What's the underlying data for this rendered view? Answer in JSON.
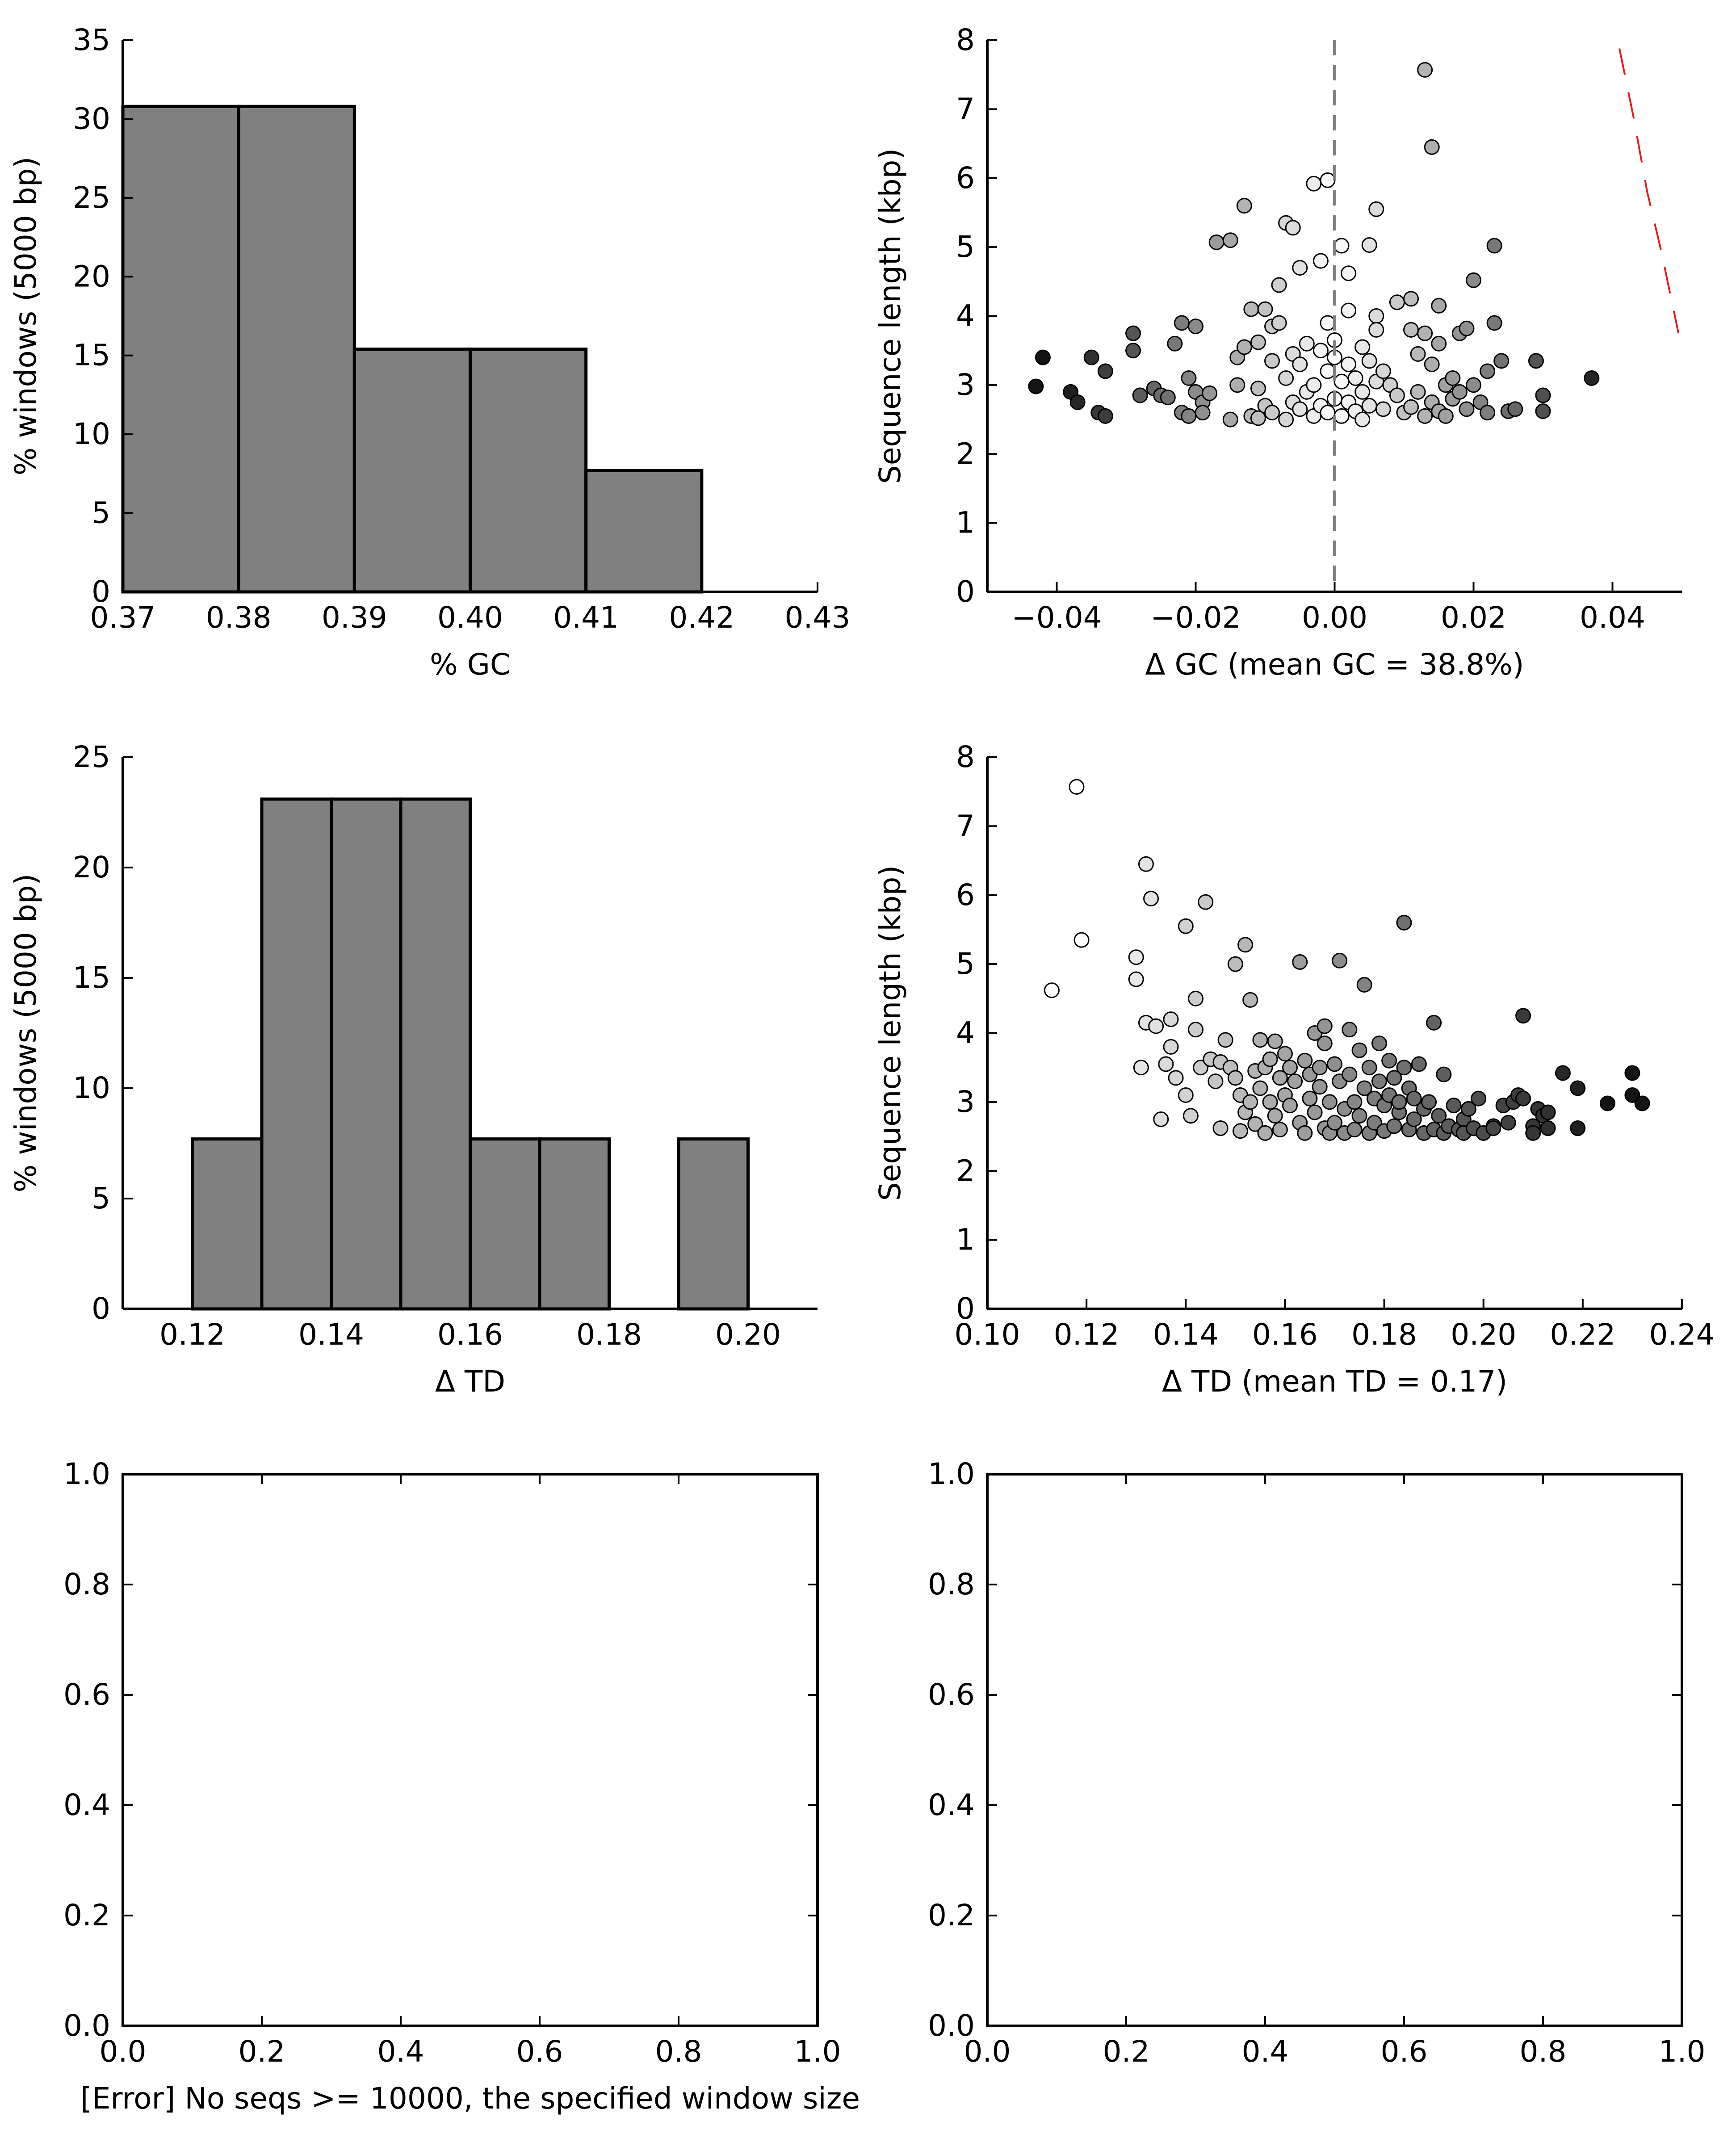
{
  "figure": {
    "background": "#ffffff",
    "bar_fill": "#808080",
    "bar_stroke": "#000000"
  },
  "chart_data": [
    {
      "id": "gc-hist",
      "type": "bar",
      "title": "",
      "xlabel": "% GC",
      "ylabel": "% windows (5000 bp)",
      "xlim": [
        0.37,
        0.43
      ],
      "ylim": [
        0,
        35
      ],
      "xticks": [
        "0.37",
        "0.38",
        "0.39",
        "0.40",
        "0.41",
        "0.42",
        "0.43"
      ],
      "yticks": [
        "0",
        "5",
        "10",
        "15",
        "20",
        "25",
        "30",
        "35"
      ],
      "bins": [
        {
          "x0": 0.37,
          "x1": 0.38,
          "value": 30.8
        },
        {
          "x0": 0.38,
          "x1": 0.39,
          "value": 30.8
        },
        {
          "x0": 0.39,
          "x1": 0.4,
          "value": 15.4
        },
        {
          "x0": 0.4,
          "x1": 0.41,
          "value": 15.4
        },
        {
          "x0": 0.41,
          "x1": 0.42,
          "value": 7.7
        }
      ]
    },
    {
      "id": "gc-scatter",
      "type": "scatter",
      "title": "",
      "xlabel": "Δ GC (mean GC = 38.8%)",
      "ylabel": "Sequence length (kbp)",
      "xlim": [
        -0.05,
        0.05
      ],
      "ylim": [
        0,
        8
      ],
      "xticks": [
        "−0.04",
        "−0.02",
        "0.00",
        "0.02",
        "0.04"
      ],
      "yticks": [
        "0",
        "1",
        "2",
        "3",
        "4",
        "5",
        "6",
        "7",
        "8"
      ],
      "vline": {
        "x": 0.0,
        "color": "#808080",
        "style": "dashed"
      },
      "curve": {
        "color": "#e41a1c",
        "style": "dashed",
        "points": [
          [
            0.041,
            7.88
          ],
          [
            0.043,
            6.9
          ],
          [
            0.045,
            5.8
          ],
          [
            0.047,
            4.95
          ],
          [
            0.0495,
            3.75
          ]
        ]
      },
      "shading": "grey level increases with |Δ GC|",
      "points": [
        [
          -0.043,
          2.98
        ],
        [
          -0.042,
          3.4
        ],
        [
          -0.038,
          2.9
        ],
        [
          -0.037,
          2.75
        ],
        [
          -0.035,
          3.4
        ],
        [
          -0.034,
          2.6
        ],
        [
          -0.033,
          3.2
        ],
        [
          -0.033,
          2.55
        ],
        [
          -0.029,
          3.75
        ],
        [
          -0.029,
          3.5
        ],
        [
          -0.028,
          2.85
        ],
        [
          -0.026,
          2.95
        ],
        [
          -0.025,
          2.85
        ],
        [
          -0.024,
          2.82
        ],
        [
          -0.023,
          3.6
        ],
        [
          -0.022,
          3.9
        ],
        [
          -0.022,
          2.6
        ],
        [
          -0.021,
          2.55
        ],
        [
          -0.021,
          3.1
        ],
        [
          -0.02,
          3.85
        ],
        [
          -0.02,
          2.9
        ],
        [
          -0.019,
          2.75
        ],
        [
          -0.019,
          2.6
        ],
        [
          -0.018,
          2.88
        ],
        [
          -0.017,
          5.07
        ],
        [
          -0.015,
          5.1
        ],
        [
          -0.015,
          2.5
        ],
        [
          -0.014,
          3.4
        ],
        [
          -0.014,
          3.0
        ],
        [
          -0.013,
          5.6
        ],
        [
          -0.013,
          3.55
        ],
        [
          -0.012,
          4.1
        ],
        [
          -0.012,
          2.55
        ],
        [
          -0.011,
          2.95
        ],
        [
          -0.011,
          3.62
        ],
        [
          -0.011,
          2.52
        ],
        [
          -0.01,
          4.1
        ],
        [
          -0.01,
          2.7
        ],
        [
          -0.009,
          3.85
        ],
        [
          -0.009,
          3.35
        ],
        [
          -0.009,
          2.6
        ],
        [
          -0.008,
          3.9
        ],
        [
          -0.008,
          4.45
        ],
        [
          -0.007,
          5.35
        ],
        [
          -0.007,
          3.1
        ],
        [
          -0.007,
          2.5
        ],
        [
          -0.006,
          5.28
        ],
        [
          -0.006,
          3.45
        ],
        [
          -0.006,
          2.75
        ],
        [
          -0.005,
          4.7
        ],
        [
          -0.005,
          3.3
        ],
        [
          -0.005,
          2.65
        ],
        [
          -0.004,
          3.6
        ],
        [
          -0.004,
          2.9
        ],
        [
          -0.003,
          5.92
        ],
        [
          -0.003,
          3.0
        ],
        [
          -0.003,
          2.55
        ],
        [
          -0.002,
          4.8
        ],
        [
          -0.002,
          3.5
        ],
        [
          -0.002,
          2.7
        ],
        [
          -0.001,
          5.97
        ],
        [
          -0.001,
          3.9
        ],
        [
          -0.001,
          3.2
        ],
        [
          -0.001,
          2.6
        ],
        [
          0.0,
          3.4
        ],
        [
          0.0,
          2.8
        ],
        [
          0.0,
          3.65
        ],
        [
          0.001,
          5.02
        ],
        [
          0.001,
          3.05
        ],
        [
          0.001,
          2.55
        ],
        [
          0.002,
          4.62
        ],
        [
          0.002,
          3.3
        ],
        [
          0.002,
          2.75
        ],
        [
          0.002,
          4.08
        ],
        [
          0.003,
          3.1
        ],
        [
          0.003,
          2.62
        ],
        [
          0.004,
          3.55
        ],
        [
          0.004,
          2.9
        ],
        [
          0.004,
          2.5
        ],
        [
          0.005,
          5.03
        ],
        [
          0.005,
          3.35
        ],
        [
          0.005,
          2.7
        ],
        [
          0.006,
          5.55
        ],
        [
          0.006,
          4.0
        ],
        [
          0.006,
          3.8
        ],
        [
          0.006,
          3.05
        ],
        [
          0.007,
          3.2
        ],
        [
          0.007,
          2.65
        ],
        [
          0.008,
          3.0
        ],
        [
          0.009,
          2.85
        ],
        [
          0.009,
          4.2
        ],
        [
          0.01,
          2.6
        ],
        [
          0.011,
          3.8
        ],
        [
          0.011,
          4.25
        ],
        [
          0.011,
          2.68
        ],
        [
          0.012,
          3.45
        ],
        [
          0.012,
          2.9
        ],
        [
          0.013,
          7.57
        ],
        [
          0.013,
          3.75
        ],
        [
          0.013,
          2.55
        ],
        [
          0.014,
          6.45
        ],
        [
          0.014,
          3.3
        ],
        [
          0.014,
          2.75
        ],
        [
          0.015,
          4.15
        ],
        [
          0.015,
          3.6
        ],
        [
          0.015,
          2.62
        ],
        [
          0.016,
          3.0
        ],
        [
          0.016,
          2.55
        ],
        [
          0.017,
          3.1
        ],
        [
          0.017,
          2.8
        ],
        [
          0.018,
          3.75
        ],
        [
          0.018,
          2.9
        ],
        [
          0.019,
          3.82
        ],
        [
          0.019,
          2.65
        ],
        [
          0.02,
          4.52
        ],
        [
          0.02,
          3.0
        ],
        [
          0.021,
          2.75
        ],
        [
          0.022,
          2.6
        ],
        [
          0.022,
          3.2
        ],
        [
          0.023,
          5.02
        ],
        [
          0.023,
          3.9
        ],
        [
          0.024,
          3.35
        ],
        [
          0.025,
          2.62
        ],
        [
          0.026,
          2.65
        ],
        [
          0.029,
          3.35
        ],
        [
          0.03,
          2.85
        ],
        [
          0.03,
          2.62
        ],
        [
          0.037,
          3.1
        ]
      ]
    },
    {
      "id": "td-hist",
      "type": "bar",
      "title": "",
      "xlabel": "Δ TD",
      "ylabel": "% windows (5000 bp)",
      "xlim": [
        0.11,
        0.21
      ],
      "ylim": [
        0,
        25
      ],
      "xticks": [
        "0.12",
        "0.14",
        "0.16",
        "0.18",
        "0.20"
      ],
      "yticks": [
        "0",
        "5",
        "10",
        "15",
        "20",
        "25"
      ],
      "bins": [
        {
          "x0": 0.12,
          "x1": 0.13,
          "value": 7.7
        },
        {
          "x0": 0.13,
          "x1": 0.14,
          "value": 23.1
        },
        {
          "x0": 0.14,
          "x1": 0.15,
          "value": 23.1
        },
        {
          "x0": 0.15,
          "x1": 0.16,
          "value": 23.1
        },
        {
          "x0": 0.16,
          "x1": 0.17,
          "value": 7.7
        },
        {
          "x0": 0.17,
          "x1": 0.18,
          "value": 7.7
        },
        {
          "x0": 0.19,
          "x1": 0.2,
          "value": 7.7
        }
      ]
    },
    {
      "id": "td-scatter",
      "type": "scatter",
      "title": "",
      "xlabel": "Δ TD (mean TD = 0.17)",
      "ylabel": "Sequence length (kbp)",
      "xlim": [
        0.1,
        0.24
      ],
      "ylim": [
        0,
        8
      ],
      "xticks": [
        "0.10",
        "0.12",
        "0.14",
        "0.16",
        "0.18",
        "0.20",
        "0.22",
        "0.24"
      ],
      "yticks": [
        "0",
        "1",
        "2",
        "3",
        "4",
        "5",
        "6",
        "7",
        "8"
      ],
      "shading": "grey level increases with Δ TD",
      "points": [
        [
          0.113,
          4.62
        ],
        [
          0.118,
          7.57
        ],
        [
          0.119,
          5.35
        ],
        [
          0.13,
          5.1
        ],
        [
          0.13,
          4.78
        ],
        [
          0.131,
          3.5
        ],
        [
          0.132,
          6.45
        ],
        [
          0.132,
          4.15
        ],
        [
          0.133,
          5.95
        ],
        [
          0.134,
          4.1
        ],
        [
          0.135,
          2.75
        ],
        [
          0.136,
          3.55
        ],
        [
          0.137,
          4.2
        ],
        [
          0.137,
          3.8
        ],
        [
          0.138,
          3.35
        ],
        [
          0.14,
          5.55
        ],
        [
          0.14,
          3.1
        ],
        [
          0.141,
          2.8
        ],
        [
          0.142,
          4.5
        ],
        [
          0.142,
          4.05
        ],
        [
          0.143,
          3.5
        ],
        [
          0.144,
          5.9
        ],
        [
          0.145,
          3.62
        ],
        [
          0.146,
          3.3
        ],
        [
          0.147,
          3.58
        ],
        [
          0.147,
          2.62
        ],
        [
          0.148,
          3.9
        ],
        [
          0.149,
          3.5
        ],
        [
          0.15,
          5.0
        ],
        [
          0.15,
          3.35
        ],
        [
          0.151,
          3.1
        ],
        [
          0.151,
          2.58
        ],
        [
          0.152,
          5.28
        ],
        [
          0.152,
          2.85
        ],
        [
          0.153,
          4.48
        ],
        [
          0.153,
          3.0
        ],
        [
          0.154,
          3.45
        ],
        [
          0.154,
          2.68
        ],
        [
          0.155,
          3.9
        ],
        [
          0.155,
          3.2
        ],
        [
          0.156,
          2.55
        ],
        [
          0.156,
          3.5
        ],
        [
          0.157,
          3.62
        ],
        [
          0.157,
          3.0
        ],
        [
          0.158,
          2.8
        ],
        [
          0.158,
          3.88
        ],
        [
          0.159,
          3.35
        ],
        [
          0.159,
          2.6
        ],
        [
          0.16,
          3.1
        ],
        [
          0.16,
          3.7
        ],
        [
          0.161,
          2.95
        ],
        [
          0.161,
          3.5
        ],
        [
          0.162,
          3.3
        ],
        [
          0.163,
          2.7
        ],
        [
          0.163,
          5.03
        ],
        [
          0.164,
          3.6
        ],
        [
          0.164,
          2.55
        ],
        [
          0.165,
          3.4
        ],
        [
          0.165,
          3.05
        ],
        [
          0.166,
          4.0
        ],
        [
          0.166,
          2.85
        ],
        [
          0.167,
          3.5
        ],
        [
          0.167,
          3.22
        ],
        [
          0.168,
          4.1
        ],
        [
          0.168,
          2.62
        ],
        [
          0.168,
          3.85
        ],
        [
          0.169,
          2.55
        ],
        [
          0.169,
          3.0
        ],
        [
          0.17,
          3.55
        ],
        [
          0.17,
          2.7
        ],
        [
          0.171,
          5.05
        ],
        [
          0.171,
          3.3
        ],
        [
          0.172,
          2.9
        ],
        [
          0.172,
          2.55
        ],
        [
          0.173,
          4.05
        ],
        [
          0.173,
          3.4
        ],
        [
          0.174,
          3.0
        ],
        [
          0.174,
          2.6
        ],
        [
          0.175,
          3.75
        ],
        [
          0.175,
          2.8
        ],
        [
          0.176,
          3.2
        ],
        [
          0.176,
          4.7
        ],
        [
          0.177,
          2.55
        ],
        [
          0.177,
          3.5
        ],
        [
          0.178,
          3.05
        ],
        [
          0.178,
          2.7
        ],
        [
          0.179,
          3.85
        ],
        [
          0.179,
          3.3
        ],
        [
          0.18,
          2.58
        ],
        [
          0.18,
          2.95
        ],
        [
          0.181,
          3.6
        ],
        [
          0.181,
          3.1
        ],
        [
          0.182,
          2.65
        ],
        [
          0.182,
          3.35
        ],
        [
          0.183,
          2.85
        ],
        [
          0.183,
          3.0
        ],
        [
          0.184,
          5.6
        ],
        [
          0.184,
          3.5
        ],
        [
          0.185,
          2.6
        ],
        [
          0.185,
          3.2
        ],
        [
          0.186,
          2.75
        ],
        [
          0.186,
          3.05
        ],
        [
          0.187,
          3.55
        ],
        [
          0.188,
          2.55
        ],
        [
          0.188,
          2.9
        ],
        [
          0.189,
          3.0
        ],
        [
          0.19,
          4.15
        ],
        [
          0.19,
          2.6
        ],
        [
          0.191,
          2.8
        ],
        [
          0.192,
          3.4
        ],
        [
          0.192,
          2.55
        ],
        [
          0.193,
          2.65
        ],
        [
          0.194,
          2.95
        ],
        [
          0.195,
          2.6
        ],
        [
          0.196,
          2.75
        ],
        [
          0.196,
          2.55
        ],
        [
          0.197,
          2.9
        ],
        [
          0.198,
          2.62
        ],
        [
          0.199,
          3.05
        ],
        [
          0.2,
          2.55
        ],
        [
          0.202,
          2.65
        ],
        [
          0.202,
          2.62
        ],
        [
          0.204,
          2.95
        ],
        [
          0.205,
          2.7
        ],
        [
          0.206,
          3.0
        ],
        [
          0.207,
          3.1
        ],
        [
          0.208,
          4.25
        ],
        [
          0.208,
          3.05
        ],
        [
          0.21,
          2.65
        ],
        [
          0.21,
          2.55
        ],
        [
          0.211,
          2.9
        ],
        [
          0.212,
          2.8
        ],
        [
          0.213,
          2.62
        ],
        [
          0.213,
          2.85
        ],
        [
          0.216,
          3.42
        ],
        [
          0.219,
          3.2
        ],
        [
          0.219,
          2.62
        ],
        [
          0.225,
          2.98
        ],
        [
          0.23,
          3.42
        ],
        [
          0.23,
          3.1
        ],
        [
          0.232,
          2.98
        ]
      ]
    },
    {
      "id": "window-left",
      "type": "scatter",
      "title": "",
      "xlabel": "[Error] No seqs >= 10000, the specified window size",
      "ylabel": "",
      "xlim": [
        0.0,
        1.0
      ],
      "ylim": [
        0.0,
        1.0
      ],
      "xticks": [
        "0.0",
        "0.2",
        "0.4",
        "0.6",
        "0.8",
        "1.0"
      ],
      "yticks": [
        "0.0",
        "0.2",
        "0.4",
        "0.6",
        "0.8",
        "1.0"
      ],
      "points": []
    },
    {
      "id": "window-right",
      "type": "scatter",
      "title": "",
      "xlabel": "",
      "ylabel": "",
      "xlim": [
        0.0,
        1.0
      ],
      "ylim": [
        0.0,
        1.0
      ],
      "xticks": [
        "0.0",
        "0.2",
        "0.4",
        "0.6",
        "0.8",
        "1.0"
      ],
      "yticks": [
        "0.0",
        "0.2",
        "0.4",
        "0.6",
        "0.8",
        "1.0"
      ],
      "points": []
    }
  ]
}
